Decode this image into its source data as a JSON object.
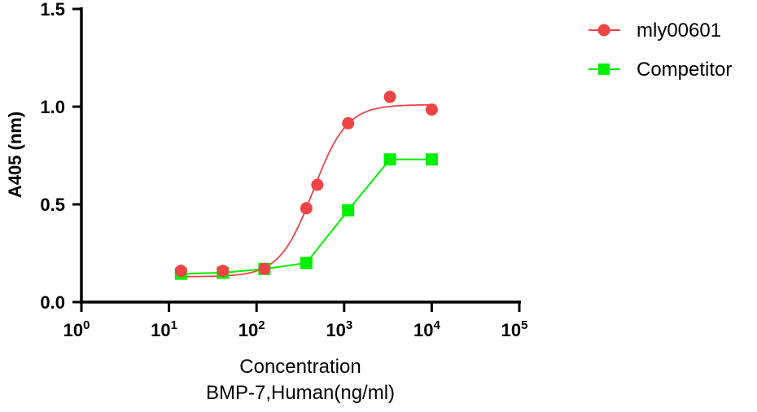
{
  "chart_data": {
    "type": "scatter",
    "xscale": "log",
    "xlim": [
      1,
      100000
    ],
    "ylim": [
      0,
      1.5
    ],
    "xticks": [
      {
        "base": "10",
        "exp": "0"
      },
      {
        "base": "10",
        "exp": "1"
      },
      {
        "base": "10",
        "exp": "2"
      },
      {
        "base": "10",
        "exp": "3"
      },
      {
        "base": "10",
        "exp": "4"
      },
      {
        "base": "10",
        "exp": "5"
      }
    ],
    "yticks": [
      "0.0",
      "0.5",
      "1.0",
      "1.5"
    ],
    "ytick_values": [
      0,
      0.5,
      1.0,
      1.5
    ],
    "xlabel": [
      "Concentration",
      "BMP-7,Human(ng/ml)"
    ],
    "ylabel": "A405 (nm)",
    "legend_position": "top-right",
    "grid": false,
    "series": [
      {
        "name": "mly00601",
        "color": "#ee4444",
        "marker": "circle",
        "line": "4PL fit",
        "fit": {
          "bottom": 0.13,
          "top": 1.01,
          "ec50": 443,
          "hill": 2.27
        },
        "x": [
          13.7,
          41.2,
          123,
          370,
          494,
          1111,
          3333,
          10000
        ],
        "y": [
          0.16,
          0.16,
          0.17,
          0.48,
          0.6,
          0.915,
          1.05,
          0.985
        ]
      },
      {
        "name": "Competitor",
        "color": "#00ee00",
        "marker": "square",
        "line": "connected",
        "x": [
          13.7,
          41.2,
          123,
          370,
          1111,
          3333,
          10000
        ],
        "y": [
          0.145,
          0.15,
          0.17,
          0.2,
          0.47,
          0.73,
          0.73
        ]
      }
    ]
  }
}
